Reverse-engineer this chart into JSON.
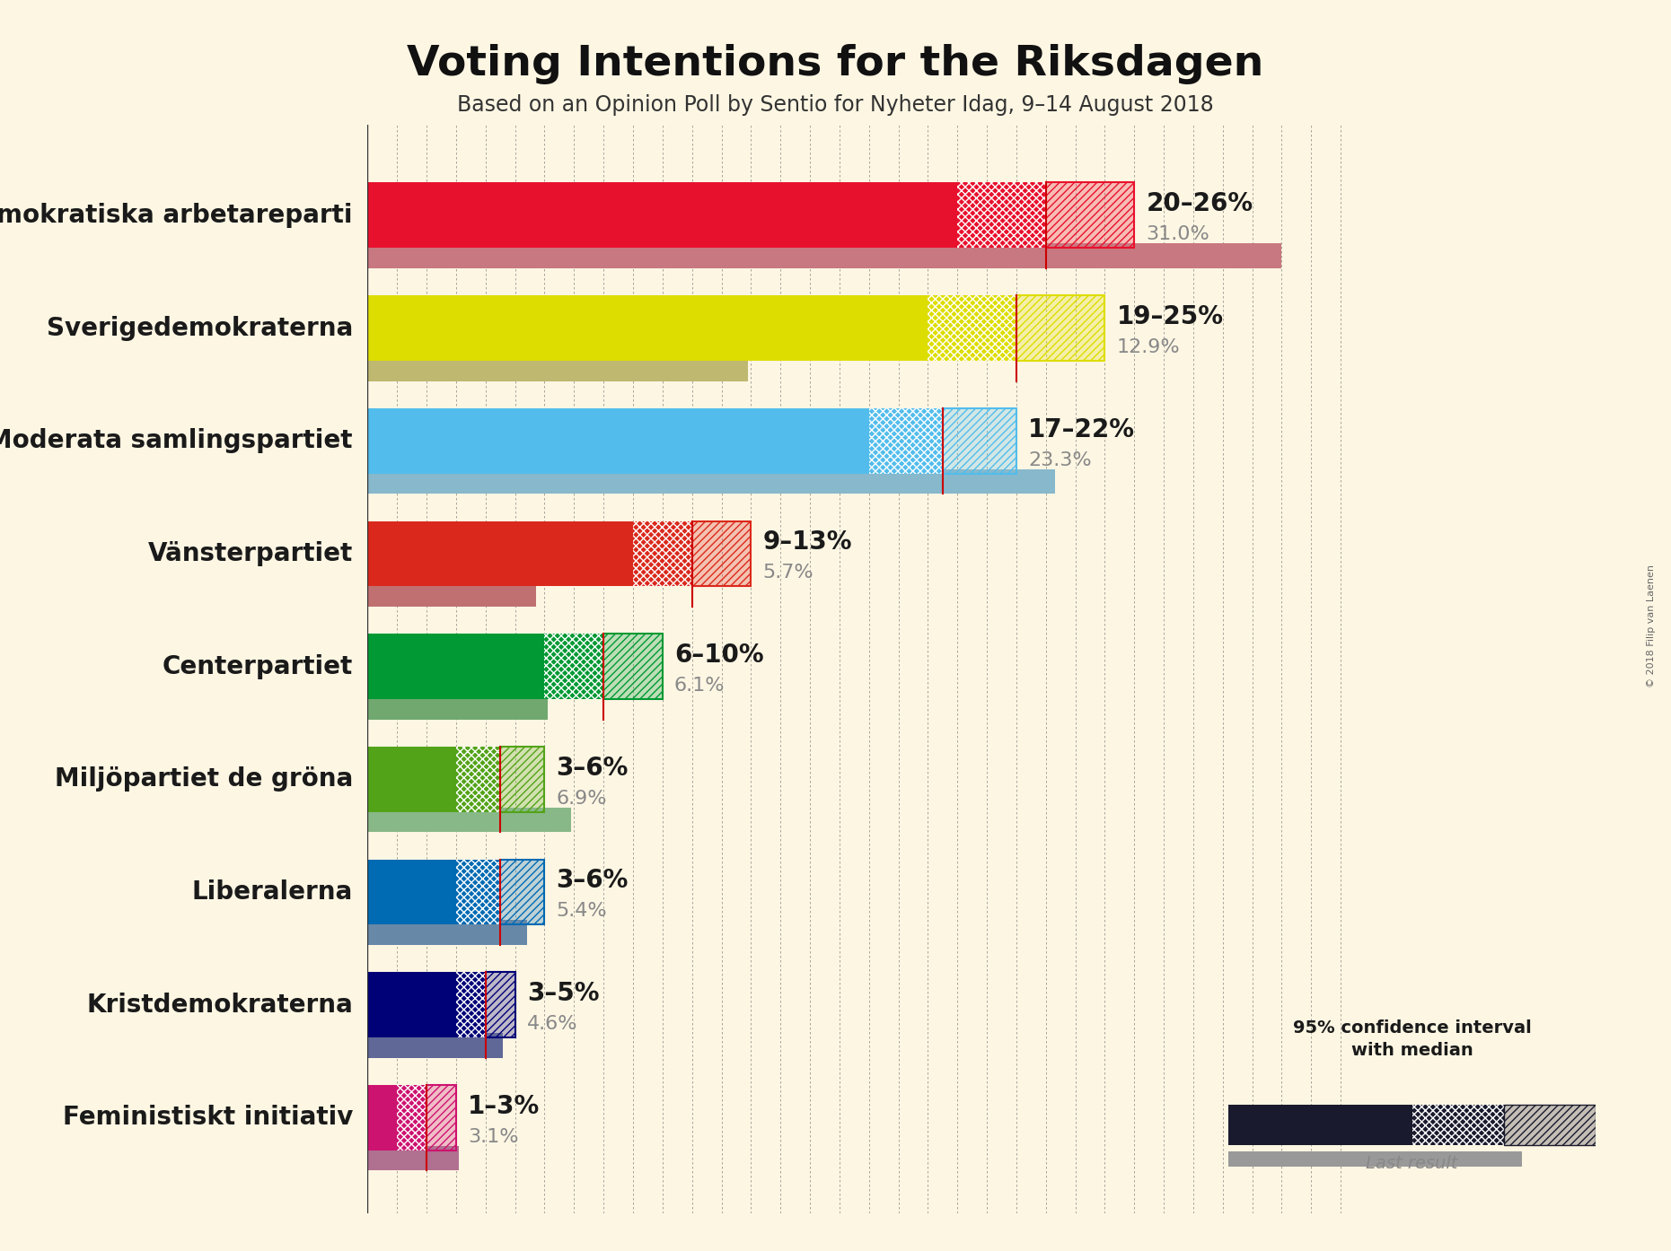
{
  "title": "Voting Intentions for the Riksdagen",
  "subtitle": "Based on an Opinion Poll by Sentio for Nyheter Idag, 9–14 August 2018",
  "copyright": "© 2018 Filip van Laenen",
  "background_color": "#fdf6e3",
  "parties": [
    {
      "name": "Sveriges socialdemokratiska arbetareparti",
      "low": 20,
      "high": 26,
      "median": 23,
      "last": 31.0,
      "color": "#E8112d",
      "last_color": "#c87880",
      "label": "20–26%",
      "last_label": "31.0%"
    },
    {
      "name": "Sverigedemokraterna",
      "low": 19,
      "high": 25,
      "median": 22,
      "last": 12.9,
      "color": "#DDDD00",
      "last_color": "#bfb870",
      "label": "19–25%",
      "last_label": "12.9%"
    },
    {
      "name": "Moderata samlingspartiet",
      "low": 17,
      "high": 22,
      "median": 19.5,
      "last": 23.3,
      "color": "#52BDEC",
      "last_color": "#88b8cc",
      "label": "17–22%",
      "last_label": "23.3%"
    },
    {
      "name": "Vänsterpartiet",
      "low": 9,
      "high": 13,
      "median": 11,
      "last": 5.7,
      "color": "#DA291C",
      "last_color": "#c07070",
      "label": "9–13%",
      "last_label": "5.7%"
    },
    {
      "name": "Centerpartiet",
      "low": 6,
      "high": 10,
      "median": 8,
      "last": 6.1,
      "color": "#009933",
      "last_color": "#70a870",
      "label": "6–10%",
      "last_label": "6.1%"
    },
    {
      "name": "Miljöpartiet de gröna",
      "low": 3,
      "high": 6,
      "median": 4.5,
      "last": 6.9,
      "color": "#53A318",
      "last_color": "#88b888",
      "label": "3–6%",
      "last_label": "6.9%"
    },
    {
      "name": "Liberalerna",
      "low": 3,
      "high": 6,
      "median": 4.5,
      "last": 5.4,
      "color": "#006AB3",
      "last_color": "#6888a8",
      "label": "3–6%",
      "last_label": "5.4%"
    },
    {
      "name": "Kristdemokraterna",
      "low": 3,
      "high": 5,
      "median": 4,
      "last": 4.6,
      "color": "#000077",
      "last_color": "#606898",
      "label": "3–5%",
      "last_label": "4.6%"
    },
    {
      "name": "Feministiskt initiativ",
      "low": 1,
      "high": 3,
      "median": 2,
      "last": 3.1,
      "color": "#CD1370",
      "last_color": "#b07090",
      "label": "1–3%",
      "last_label": "3.1%"
    }
  ],
  "xlim": [
    0,
    34
  ],
  "bar_height": 0.58,
  "last_bar_height": 0.22,
  "label_fontsize": 20,
  "last_label_fontsize": 16,
  "party_fontsize": 20,
  "title_fontsize": 34,
  "subtitle_fontsize": 17,
  "grid_color": "#555555",
  "median_line_color": "#cc0000"
}
